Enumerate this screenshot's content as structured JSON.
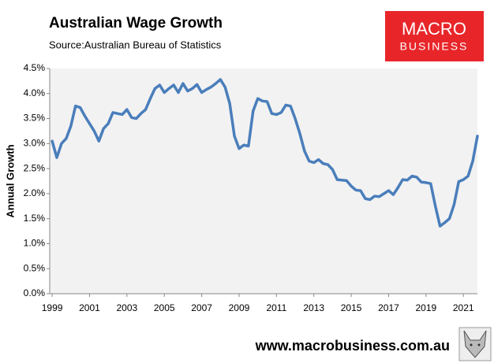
{
  "chart_data": {
    "type": "line",
    "title": "Australian Wage Growth",
    "subtitle": "Source:Australian Bureau of Statistics",
    "y_label": "Annual Growth",
    "logo": {
      "line1": "MACRO",
      "line2": "BUSINESS"
    },
    "footer": "www.macrobusiness.com.au",
    "color": "#4a7ebb",
    "plot_background": "#f2f2f2",
    "xlim": [
      1998.87,
      2021.75
    ],
    "xticks": [
      1999,
      2001,
      2003,
      2005,
      2007,
      2009,
      2011,
      2013,
      2015,
      2017,
      2019,
      2021
    ],
    "ylim": [
      0,
      4.5
    ],
    "yticks": [
      {
        "value": 0,
        "label": "0.0%"
      },
      {
        "value": 0.5,
        "label": "0.5%"
      },
      {
        "value": 1,
        "label": "1.0%"
      },
      {
        "value": 1.5,
        "label": "1.5%"
      },
      {
        "value": 2,
        "label": "2.0%"
      },
      {
        "value": 2.5,
        "label": "2.5%"
      },
      {
        "value": 3,
        "label": "3.0%"
      },
      {
        "value": 3.5,
        "label": "3.5%"
      },
      {
        "value": 4,
        "label": "4.0%"
      },
      {
        "value": 4.5,
        "label": "4.5%"
      }
    ],
    "x": [
      1999,
      1999.25,
      1999.5,
      1999.75,
      2000,
      2000.25,
      2000.5,
      2000.75,
      2001,
      2001.25,
      2001.5,
      2001.75,
      2002,
      2002.25,
      2002.5,
      2002.75,
      2003,
      2003.25,
      2003.5,
      2003.75,
      2004,
      2004.25,
      2004.5,
      2004.75,
      2005,
      2005.25,
      2005.5,
      2005.75,
      2006,
      2006.25,
      2006.5,
      2006.75,
      2007,
      2007.25,
      2007.5,
      2007.75,
      2008,
      2008.25,
      2008.5,
      2008.75,
      2009,
      2009.25,
      2009.5,
      2009.75,
      2010,
      2010.25,
      2010.5,
      2010.75,
      2011,
      2011.25,
      2011.5,
      2011.75,
      2012,
      2012.25,
      2012.5,
      2012.75,
      2013,
      2013.25,
      2013.5,
      2013.75,
      2014,
      2014.25,
      2014.5,
      2014.75,
      2015,
      2015.25,
      2015.5,
      2015.75,
      2016,
      2016.25,
      2016.5,
      2016.75,
      2017,
      2017.25,
      2017.5,
      2017.75,
      2018,
      2018.25,
      2018.5,
      2018.75,
      2019,
      2019.25,
      2019.5,
      2019.75,
      2020,
      2020.25,
      2020.5,
      2020.75,
      2021,
      2021.25,
      2021.5,
      2021.75
    ],
    "values": [
      3.05,
      2.72,
      3.0,
      3.1,
      3.35,
      3.75,
      3.72,
      3.55,
      3.4,
      3.25,
      3.05,
      3.3,
      3.4,
      3.62,
      3.6,
      3.58,
      3.68,
      3.52,
      3.5,
      3.6,
      3.68,
      3.9,
      4.1,
      4.17,
      4.02,
      4.1,
      4.17,
      4.02,
      4.2,
      4.05,
      4.1,
      4.18,
      4.02,
      4.08,
      4.13,
      4.2,
      4.28,
      4.13,
      3.8,
      3.15,
      2.9,
      2.97,
      2.95,
      3.65,
      3.9,
      3.85,
      3.84,
      3.6,
      3.58,
      3.62,
      3.77,
      3.75,
      3.5,
      3.2,
      2.85,
      2.65,
      2.62,
      2.68,
      2.6,
      2.58,
      2.48,
      2.28,
      2.27,
      2.26,
      2.15,
      2.07,
      2.06,
      1.9,
      1.88,
      1.95,
      1.94,
      2.0,
      2.06,
      1.98,
      2.12,
      2.28,
      2.27,
      2.35,
      2.33,
      2.23,
      2.22,
      2.2,
      1.75,
      1.35,
      1.42,
      1.5,
      1.78,
      2.24,
      2.28,
      2.35,
      2.65,
      3.15
    ]
  }
}
